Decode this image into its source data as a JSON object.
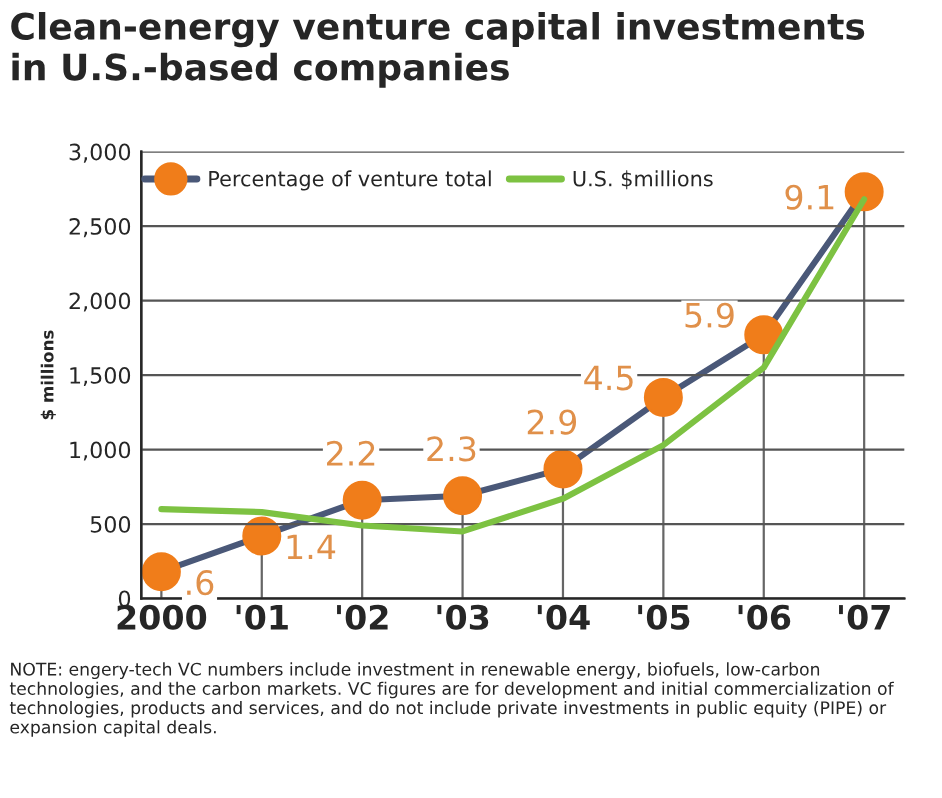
{
  "chart_data": {
    "type": "line",
    "title": "Clean-energy venture capital investments\nin U.S.-based companies",
    "ylabel": "$ millions",
    "categories": [
      "2000",
      "'01",
      "'02",
      "'03",
      "'04",
      "'05",
      "'06",
      "'07"
    ],
    "series": [
      {
        "name": "Percentage of venture total",
        "type": "lollipop",
        "axis": "y2",
        "color": "#4a5878",
        "colors": [
          "#f07d1a",
          "#f07d1a",
          "#f07d1a",
          "#f07d1a",
          "#f07d1a",
          "#f07d1a",
          "#f07d1a",
          "#f07d1a"
        ],
        "marker": "circle",
        "values": [
          0.6,
          1.4,
          2.2,
          2.3,
          2.9,
          4.5,
          5.9,
          9.1
        ],
        "value_labels": [
          ".6",
          "1.4",
          "2.2",
          "2.3",
          "2.9",
          "4.5",
          "5.9",
          "9.1"
        ]
      },
      {
        "name": "U.S. $millions",
        "color": "#7dc242",
        "values": [
          600,
          580,
          490,
          450,
          670,
          1030,
          1550,
          2680
        ]
      }
    ],
    "ylim": [
      0,
      3000
    ],
    "yticks": [
      0,
      {
        "value": 500,
        "label": "500"
      },
      {
        "value": 1000,
        "label": "1,000"
      },
      {
        "value": 1500,
        "label": "1,500"
      },
      {
        "value": 2000,
        "label": "2,000"
      },
      {
        "value": 2500,
        "label": "2,500"
      },
      {
        "value": 3000,
        "label": "3,000"
      }
    ],
    "y2lim": [
      0,
      10
    ],
    "tick_labels": "y",
    "grid": "y",
    "legend": "top left",
    "annotations": [
      "NOTE: engery-tech VC numbers include investment in renewable energy, biofuels, low-carbon technologies, and the carbon markets. VC figures are for development and initial commercialization of technologies, products and services, and do not include private investments in public equity (PIPE) or expansion capital deals."
    ]
  }
}
